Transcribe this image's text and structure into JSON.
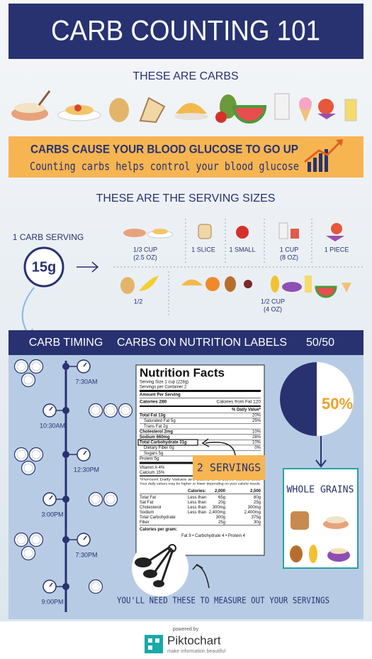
{
  "header": {
    "title": "CARB COUNTING 101"
  },
  "carbs_heading": "THESE ARE CARBS",
  "banner": {
    "headline": "CARBS CAUSE YOUR BLOOD GLUCOSE TO GO UP",
    "subline": "Counting carbs helps control your blood glucose"
  },
  "servings_heading": "THESE ARE THE SERVING SIZES",
  "carb_serving": {
    "label": "1 CARB SERVING",
    "grams": "15g"
  },
  "serving_sizes": [
    {
      "lines": [
        "1/3 CUP",
        "(2.5 OZ)"
      ]
    },
    {
      "lines": [
        "1 SLICE"
      ]
    },
    {
      "lines": [
        "1 SMALL"
      ]
    },
    {
      "lines": [
        "1 CUP",
        "(8 OZ)"
      ]
    },
    {
      "lines": [
        "1 PIECE"
      ]
    },
    {
      "lines": [
        "1/2"
      ]
    },
    {
      "lines": [
        "1/2 CUP",
        "(4 OZ)"
      ]
    }
  ],
  "section_headers": [
    "CARB TIMING",
    "CARBS ON NUTRITION LABELS",
    "50/50"
  ],
  "timing": [
    {
      "time": "7:30AM",
      "servings": 3
    },
    {
      "time": "10:30AM",
      "servings": 3
    },
    {
      "time": "12:30PM",
      "servings": 3
    },
    {
      "time": "3:00PM",
      "servings": 2
    },
    {
      "time": "7:30PM",
      "servings": 3
    },
    {
      "time": "9:00PM",
      "servings": 1
    }
  ],
  "nutrition_label": {
    "title": "Nutrition Facts",
    "serving_size": "Serving Size 1 cup (228g)",
    "servings_per_container": "Servings per Container 2",
    "amount_per_serving": "Amount Per Serving",
    "calories": "Calories 280",
    "calories_from_fat": "Calories from Fat 120",
    "daily_value": "% Daily Value*",
    "rows": [
      [
        "Total Fat 13g",
        "20%"
      ],
      [
        "Saturated Fat 5g",
        "25%"
      ],
      [
        "Trans Fat 2g"
      ],
      [
        "Cholesterol 2mg",
        "10%"
      ],
      [
        "Sodium 660mg",
        "28%"
      ],
      [
        "Total Carbohydrate 31g",
        "10%"
      ],
      [
        "Dietary Fiber 0g",
        "0%"
      ],
      [
        "Sugars 5g"
      ],
      [
        "Protein 5g"
      ]
    ],
    "vitamins": [
      "Vitamin A 4%",
      "Calcium 15%"
    ],
    "footnote": [
      "*Percent Daily Values are based on a 2,000 calorie diet.",
      "Your daily values may be higher or lower depending on your calorie needs."
    ],
    "table_header": [
      "Calories:",
      "2,000",
      "2,500"
    ],
    "table_rows": [
      [
        "Total Fat",
        "Less than",
        "65g",
        "80g"
      ],
      [
        "Sat Fat",
        "Less than",
        "20g",
        "25g"
      ],
      [
        "Cholesterol",
        "Less than",
        "300mg",
        "300mg"
      ],
      [
        "Sodium",
        "Less than",
        "2,400mg",
        "2,400mg"
      ],
      [
        "Total Carbohydrate",
        "300g",
        "375g"
      ],
      [
        "Fiber",
        "25g",
        "30g"
      ]
    ],
    "per_gram": "Calories per gram:",
    "per_gram_values": "Fat 9 • Carbohydrate 4 • Protein 4"
  },
  "servings_callout": "2 SERVINGS",
  "half": {
    "percent": "50%",
    "label": "WHOLE GRAINS"
  },
  "measure_note": "YOU'LL NEED THESE TO MEASURE OUT YOUR SERVINGS",
  "footer": {
    "powered_by": "powered by",
    "brand": "Piktochart",
    "tagline": "make information beautiful"
  }
}
